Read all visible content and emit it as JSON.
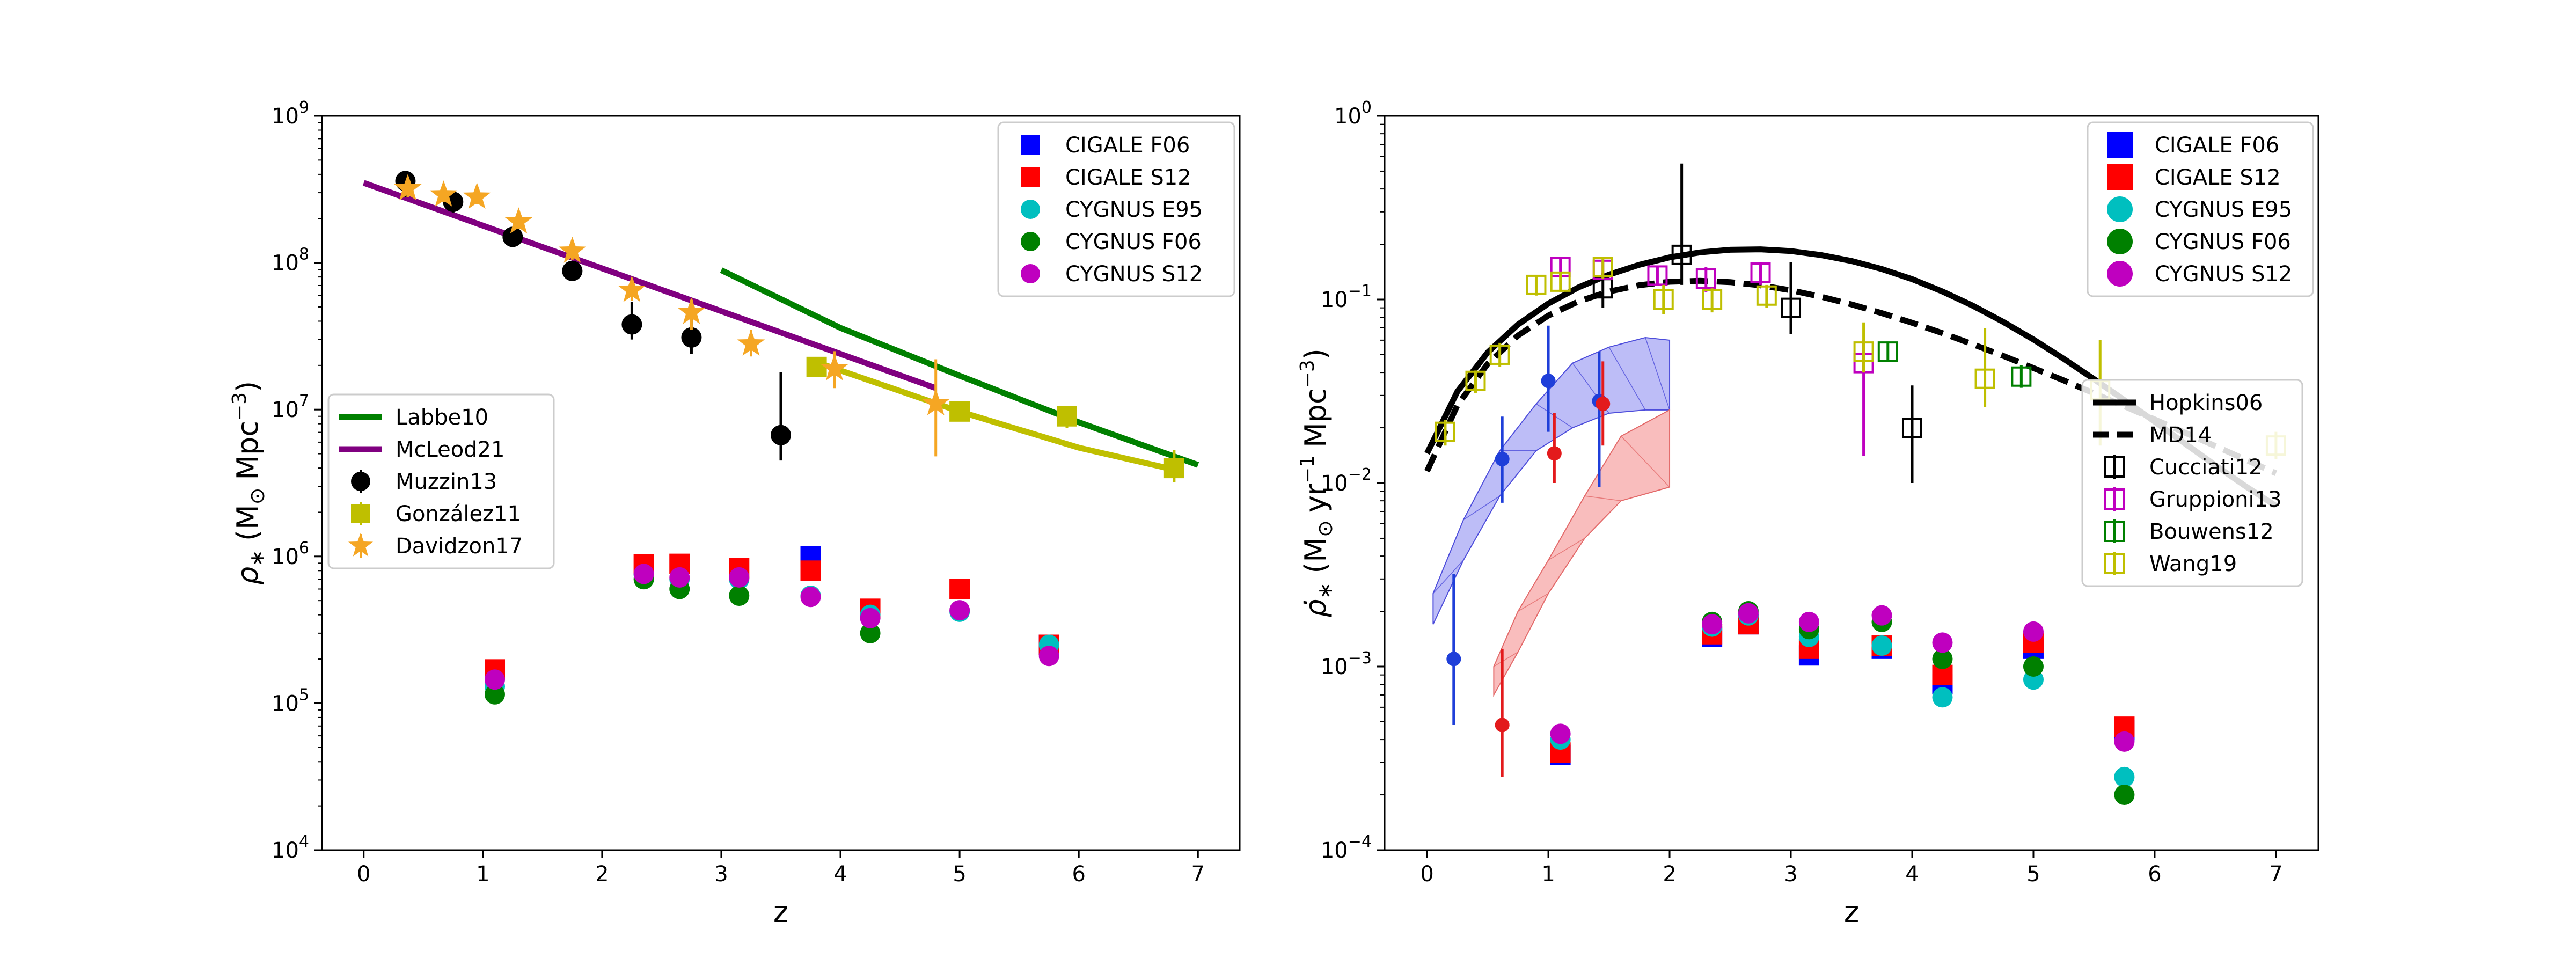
{
  "chart_data": [
    {
      "type": "scatter",
      "id": "left",
      "xlabel": "z",
      "ylabel": "ρ∗ (M⊙ Mpc⁻³)",
      "ylabel_sym": "ρ",
      "ylabel_sub": "∗",
      "ylabel_rest": "(M",
      "ylabel_sun": "⊙",
      "ylabel_unit": "Mpc",
      "ylabel_exp": "−3",
      "ylabel_close": ")",
      "xlim": [
        -0.35,
        7.35
      ],
      "ylim_exp": [
        4,
        9
      ],
      "xticks": [
        0,
        1,
        2,
        3,
        4,
        5,
        6,
        7
      ],
      "yticks_exp": [
        4,
        5,
        6,
        7,
        8,
        9
      ],
      "ytick_base": "10",
      "series": [
        {
          "name": "CIGALE F06",
          "marker": "square",
          "color": "#0000ff",
          "x": [
            3.75,
            5.75
          ],
          "y": [
            1000000.0,
            250000.0
          ]
        },
        {
          "name": "CIGALE S12",
          "marker": "square",
          "color": "#ff0000",
          "x": [
            1.1,
            2.35,
            2.65,
            3.15,
            3.75,
            4.25,
            5.0,
            5.75
          ],
          "y": [
            170000.0,
            880000.0,
            890000.0,
            830000.0,
            800000.0,
            440000.0,
            600000.0,
            250000.0
          ]
        },
        {
          "name": "CYGNUS E95",
          "marker": "circle",
          "color": "#00bfbf",
          "x": [
            1.1,
            2.35,
            2.65,
            3.15,
            3.75,
            4.25,
            5.0,
            5.75
          ],
          "y": [
            130000.0,
            750000.0,
            700000.0,
            700000.0,
            540000.0,
            400000.0,
            420000.0,
            250000.0
          ]
        },
        {
          "name": "CYGNUS F06",
          "marker": "circle",
          "color": "#008000",
          "x": [
            1.1,
            2.35,
            2.65,
            3.15,
            4.25
          ],
          "y": [
            115000.0,
            700000.0,
            600000.0,
            540000.0,
            300000.0
          ]
        },
        {
          "name": "CYGNUS S12",
          "marker": "circle",
          "color": "#bf00bf",
          "x": [
            1.1,
            2.35,
            2.65,
            3.15,
            3.75,
            4.25,
            5.0,
            5.75
          ],
          "y": [
            145000.0,
            760000.0,
            720000.0,
            720000.0,
            530000.0,
            380000.0,
            430000.0,
            210000.0
          ]
        },
        {
          "name": "Muzzin13",
          "marker": "circle",
          "color": "#000000",
          "errorbar": true,
          "x": [
            0.35,
            0.75,
            1.25,
            1.75,
            2.25,
            2.75,
            3.5
          ],
          "y": [
            360000000.0,
            260000000.0,
            150000000.0,
            88000000.0,
            38000000.0,
            31000000.0,
            6700000.0
          ],
          "ylo": [
            280000000.0,
            220000000.0,
            135000000.0,
            80000000.0,
            30000000.0,
            24000000.0,
            4500000.0
          ],
          "yhi": [
            420000000.0,
            300000000.0,
            170000000.0,
            96000000.0,
            54000000.0,
            43000000.0,
            18000000.0
          ]
        },
        {
          "name": "González11",
          "marker": "square",
          "color": "#bfbf00",
          "errorbar": true,
          "x": [
            3.8,
            5.0,
            5.9,
            6.8
          ],
          "y": [
            19500000.0,
            9700000.0,
            9000000.0,
            4000000.0
          ],
          "ylo": [
            17000000.0,
            8400000.0,
            7500000.0,
            3200000.0
          ],
          "yhi": [
            22000000.0,
            11000000.0,
            10500000.0,
            5300000.0
          ]
        },
        {
          "name": "Davidzon17",
          "marker": "star",
          "color": "#f5a623",
          "errorbar": true,
          "x": [
            0.37,
            0.67,
            0.95,
            1.3,
            1.75,
            2.25,
            2.75,
            3.25,
            3.95,
            4.8
          ],
          "y": [
            320000000.0,
            290000000.0,
            280000000.0,
            190000000.0,
            120000000.0,
            65000000.0,
            46000000.0,
            28000000.0,
            19000000.0,
            11000000.0
          ],
          "ylo": [
            280000000.0,
            260000000.0,
            250000000.0,
            170000000.0,
            105000000.0,
            55000000.0,
            35000000.0,
            23000000.0,
            14000000.0,
            4800000.0
          ],
          "yhi": [
            360000000.0,
            320000000.0,
            310000000.0,
            210000000.0,
            140000000.0,
            75000000.0,
            56000000.0,
            35000000.0,
            25000000.0,
            22000000.0
          ]
        }
      ],
      "lines": [
        {
          "name": "Labbe10",
          "color": "#008000",
          "x": [
            3.0,
            4.0,
            5.0,
            6.0,
            7.0
          ],
          "y": [
            89000000.0,
            36000000.0,
            17000000.0,
            8200000.0,
            4200000.0
          ]
        },
        {
          "name": "McLeod21",
          "color": "#800080",
          "x": [
            0.0,
            4.8
          ],
          "y": [
            350000000.0,
            14000000.0
          ]
        },
        {
          "name": "González11 fit",
          "color": "#bfbf00",
          "x": [
            3.8,
            5.0,
            6.0,
            6.8
          ],
          "y": [
            21000000.0,
            9700000.0,
            5500000.0,
            3900000.0
          ]
        }
      ],
      "legend_top": [
        "CIGALE F06",
        "CIGALE S12",
        "CYGNUS E95",
        "CYGNUS F06",
        "CYGNUS S12"
      ],
      "legend_left": [
        "Labbe10",
        "McLeod21",
        "Muzzin13",
        "González11",
        "Davidzon17"
      ],
      "legend_placement": [
        "top-right",
        "center-left"
      ]
    },
    {
      "type": "scatter",
      "id": "right",
      "xlabel": "z",
      "ylabel": "ρ̇∗ (M⊙ yr⁻¹ Mpc⁻³)",
      "ylabel_sym": "ρ̇",
      "ylabel_sub": "∗",
      "ylabel_rest": "(M",
      "ylabel_sun": "⊙",
      "ylabel_yr": "yr",
      "ylabel_yr_exp": "−1",
      "ylabel_unit": "Mpc",
      "ylabel_exp": "−3",
      "ylabel_close": ")",
      "xlim": [
        -0.35,
        7.35
      ],
      "ylim_exp": [
        -4,
        0
      ],
      "xticks": [
        0,
        1,
        2,
        3,
        4,
        5,
        6,
        7
      ],
      "yticks_exp": [
        -4,
        -3,
        -2,
        -1,
        0
      ],
      "ytick_base": "10",
      "series": [
        {
          "name": "CIGALE F06",
          "marker": "square",
          "color": "#0000ff",
          "x": [
            1.1,
            2.35,
            2.65,
            3.15,
            3.75,
            4.25,
            5.0,
            5.75
          ],
          "y": [
            0.00033,
            0.00145,
            0.0017,
            0.00115,
            0.00125,
            0.0008,
            0.00125,
            0.00045
          ]
        },
        {
          "name": "CIGALE S12",
          "marker": "square",
          "color": "#ff0000",
          "x": [
            1.1,
            2.35,
            2.65,
            3.15,
            3.75,
            4.25,
            5.0,
            5.75
          ],
          "y": [
            0.00034,
            0.0015,
            0.0017,
            0.00125,
            0.0013,
            0.0009,
            0.00135,
            0.00047
          ]
        },
        {
          "name": "CYGNUS E95",
          "marker": "circle",
          "color": "#00bfbf",
          "x": [
            1.1,
            2.35,
            2.65,
            3.15,
            3.75,
            4.25,
            5.0,
            5.75
          ],
          "y": [
            0.0004,
            0.00165,
            0.0019,
            0.00145,
            0.0013,
            0.00068,
            0.00085,
            0.00025
          ]
        },
        {
          "name": "CYGNUS F06",
          "marker": "circle",
          "color": "#008000",
          "x": [
            2.35,
            2.65,
            3.15,
            3.75,
            4.25,
            5.0,
            5.75
          ],
          "y": [
            0.00175,
            0.002,
            0.0016,
            0.00175,
            0.0011,
            0.001,
            0.0002
          ]
        },
        {
          "name": "CYGNUS S12",
          "marker": "circle",
          "color": "#bf00bf",
          "x": [
            1.1,
            2.35,
            2.65,
            3.15,
            3.75,
            4.25,
            5.0,
            5.75
          ],
          "y": [
            0.00043,
            0.0017,
            0.00195,
            0.00175,
            0.0019,
            0.00135,
            0.00155,
            0.00039
          ]
        },
        {
          "name": "UV blue points",
          "marker": "dot",
          "color": "#1f3fd9",
          "errorbar": true,
          "x": [
            0.22,
            0.62,
            1.0,
            1.42
          ],
          "y": [
            0.0011,
            0.0135,
            0.036,
            0.028
          ],
          "ylo": [
            0.00048,
            0.0078,
            0.019,
            0.0095
          ],
          "yhi": [
            0.0032,
            0.023,
            0.072,
            0.052
          ]
        },
        {
          "name": "UV red points",
          "marker": "dot",
          "color": "#e31a1c",
          "errorbar": true,
          "x": [
            0.62,
            1.05,
            1.45
          ],
          "y": [
            0.00048,
            0.0145,
            0.027
          ],
          "ylo": [
            0.00025,
            0.01,
            0.016
          ],
          "yhi": [
            0.00125,
            0.024,
            0.046
          ]
        },
        {
          "name": "Cucciati12",
          "marker": "open-square",
          "color": "#000000",
          "errorbar": true,
          "x": [
            1.45,
            2.1,
            3.0,
            4.0
          ],
          "y": [
            0.115,
            0.175,
            0.09,
            0.02
          ],
          "ylo": [
            0.09,
            0.12,
            0.065,
            0.01
          ],
          "yhi": [
            0.14,
            0.55,
            0.16,
            0.034
          ]
        },
        {
          "name": "Gruppioni13",
          "marker": "open-square",
          "color": "#bf00bf",
          "errorbar": true,
          "x": [
            1.1,
            1.45,
            1.9,
            2.3,
            2.75,
            3.6
          ],
          "y": [
            0.15,
            0.145,
            0.135,
            0.13,
            0.14,
            0.045
          ],
          "ylo": [
            0.135,
            0.13,
            0.12,
            0.11,
            0.12,
            0.014
          ],
          "yhi": [
            0.17,
            0.165,
            0.15,
            0.15,
            0.16,
            0.06
          ]
        },
        {
          "name": "Bouwens12",
          "marker": "open-square",
          "color": "#008000",
          "errorbar": true,
          "x": [
            3.8,
            4.9
          ],
          "y": [
            0.052,
            0.038
          ],
          "ylo": [
            0.046,
            0.033
          ],
          "yhi": [
            0.059,
            0.044
          ]
        },
        {
          "name": "Wang19",
          "marker": "open-square",
          "color": "#bfbf00",
          "errorbar": true,
          "x": [
            0.15,
            0.4,
            0.6,
            0.9,
            1.1,
            1.45,
            1.95,
            2.35,
            2.8,
            3.6,
            4.6,
            5.55,
            7.0
          ],
          "y": [
            0.019,
            0.036,
            0.05,
            0.12,
            0.125,
            0.15,
            0.1,
            0.1,
            0.105,
            0.052,
            0.037,
            0.032,
            0.016
          ],
          "ylo": [
            0.016,
            0.031,
            0.043,
            0.105,
            0.11,
            0.13,
            0.083,
            0.085,
            0.09,
            0.04,
            0.026,
            0.016,
            0.0135
          ],
          "yhi": [
            0.022,
            0.041,
            0.058,
            0.135,
            0.14,
            0.17,
            0.12,
            0.115,
            0.12,
            0.075,
            0.07,
            0.06,
            0.019
          ]
        }
      ],
      "lines": [
        {
          "name": "Hopkins06",
          "style": "solid",
          "color": "#000000",
          "x": [
            0,
            0.25,
            0.5,
            0.75,
            1.0,
            1.25,
            1.5,
            1.75,
            2.0,
            2.25,
            2.5,
            2.75,
            3.0,
            3.25,
            3.5,
            3.75,
            4.0,
            4.25,
            4.5,
            4.75,
            5.0,
            5.25,
            5.5,
            5.75,
            6.0,
            6.25,
            6.5,
            6.75,
            7.0
          ],
          "y": [
            0.0145,
            0.0315,
            0.0515,
            0.073,
            0.095,
            0.1165,
            0.1365,
            0.1545,
            0.1695,
            0.1805,
            0.1865,
            0.1875,
            0.1835,
            0.1745,
            0.162,
            0.1465,
            0.129,
            0.1105,
            0.0925,
            0.0755,
            0.0605,
            0.0475,
            0.0368,
            0.0283,
            0.0216,
            0.0164,
            0.0125,
            0.0096,
            0.0075
          ]
        },
        {
          "name": "MD14",
          "style": "dashed",
          "color": "#000000",
          "x": [
            0,
            0.25,
            0.5,
            0.75,
            1.0,
            1.25,
            1.5,
            1.75,
            2.0,
            2.25,
            2.5,
            2.75,
            3.0,
            3.25,
            3.5,
            3.75,
            4.0,
            4.25,
            4.5,
            4.75,
            5.0,
            5.25,
            5.5,
            5.75,
            6.0,
            6.25,
            6.5,
            6.75,
            7.0
          ],
          "y": [
            0.0116,
            0.0265,
            0.0446,
            0.0636,
            0.0817,
            0.0977,
            0.1105,
            0.1196,
            0.1249,
            0.1263,
            0.1243,
            0.1194,
            0.1122,
            0.1035,
            0.094,
            0.0842,
            0.0746,
            0.0655,
            0.057,
            0.0493,
            0.0423,
            0.0362,
            0.0308,
            0.0262,
            0.0222,
            0.0188,
            0.0159,
            0.0134,
            0.0113
          ]
        }
      ],
      "bands": [
        {
          "name": "blue band",
          "color": "#4d4ddb",
          "fill": "rgba(90,90,235,0.40)",
          "x": [
            0.05,
            0.3,
            0.6,
            0.9,
            1.2,
            1.5,
            1.8,
            2.0
          ],
          "lower": [
            0.0017,
            0.0038,
            0.0085,
            0.015,
            0.02,
            0.024,
            0.025,
            0.025
          ],
          "upper": [
            0.0025,
            0.0063,
            0.015,
            0.027,
            0.045,
            0.055,
            0.062,
            0.06
          ]
        },
        {
          "name": "red band",
          "color": "#e36a6a",
          "fill": "rgba(240,90,90,0.40)",
          "x": [
            0.55,
            0.75,
            1.0,
            1.3,
            1.6,
            2.0
          ],
          "lower": [
            0.0007,
            0.0012,
            0.0025,
            0.005,
            0.008,
            0.0095
          ],
          "upper": [
            0.001,
            0.002,
            0.0038,
            0.0085,
            0.018,
            0.025
          ]
        }
      ],
      "legend_top": [
        "CIGALE F06",
        "CIGALE S12",
        "CYGNUS E95",
        "CYGNUS F06",
        "CYGNUS S12"
      ],
      "legend_right": [
        "Hopkins06",
        "MD14",
        "Cucciati12",
        "Gruppioni13",
        "Bouwens12",
        "Wang19"
      ],
      "legend_placement": [
        "top-right",
        "center-right"
      ]
    }
  ]
}
